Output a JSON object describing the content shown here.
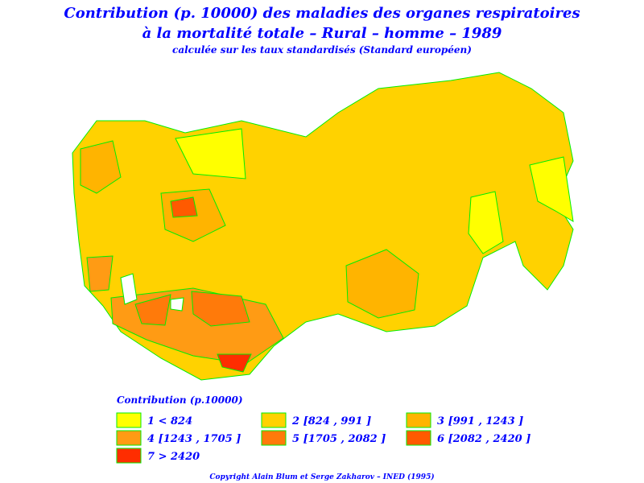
{
  "header": {
    "title_line1": "Contribution (p. 10000) des maladies des organes respiratoires",
    "title_line2": "à la mortalité totale  –  Rural  –  homme  –  1989",
    "subtitle": "calculée sur les taux standardisés (Standard européen)"
  },
  "legend": {
    "title": "Contribution (p.10000)",
    "items": [
      {
        "label": "1  <  824",
        "color": "#ffff00"
      },
      {
        "label": "2 [824 , 991 ]",
        "color": "#ffd200"
      },
      {
        "label": "3 [991 , 1243 ]",
        "color": "#ffb400"
      },
      {
        "label": "4 [1243 , 1705 ]",
        "color": "#ff9b14"
      },
      {
        "label": "5 [1705 , 2082 ]",
        "color": "#ff7a0a"
      },
      {
        "label": "6 [2082 , 2420 ]",
        "color": "#ff5a00"
      },
      {
        "label": "7  >  2420",
        "color": "#ff2d00"
      }
    ]
  },
  "footer": {
    "copyright": "Copyright Alain Blum et Serge Zakharov  –  INED (1995)"
  }
}
